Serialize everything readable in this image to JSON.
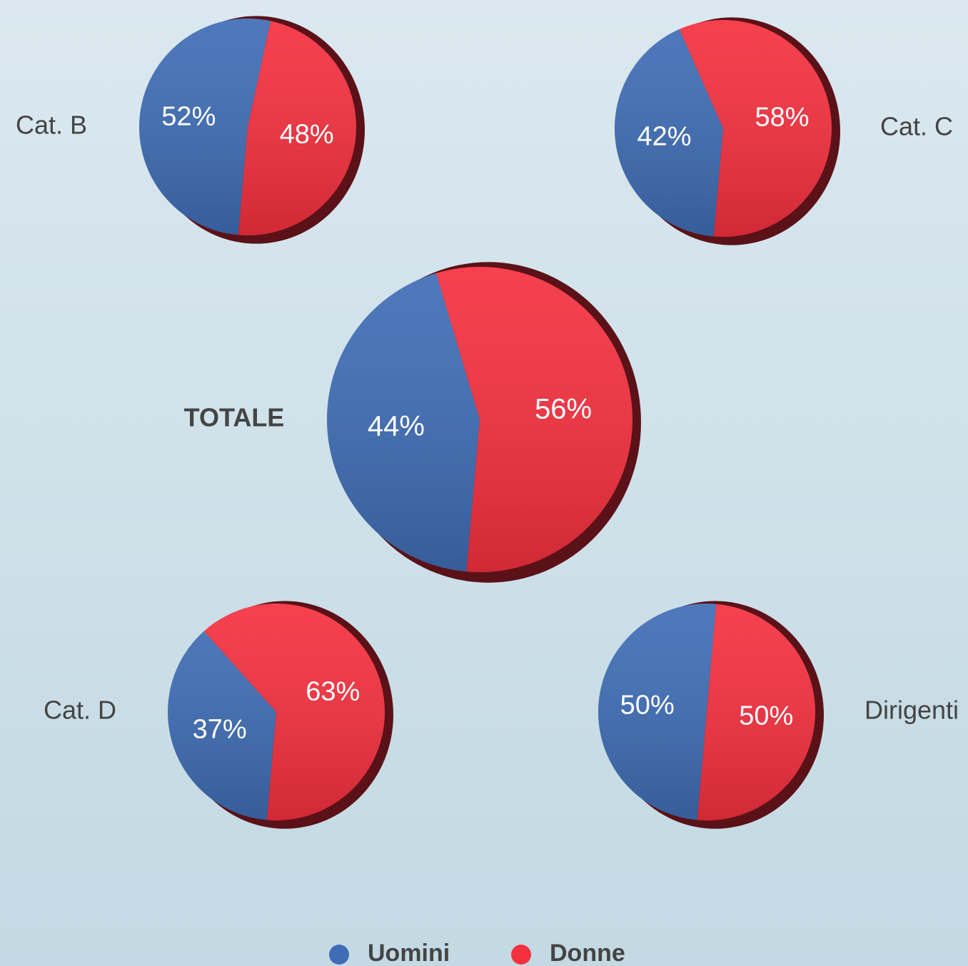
{
  "chart_data": {
    "type": "pie",
    "categories": [
      "Cat. B",
      "Cat. C",
      "TOTALE",
      "Cat. D",
      "Dirigenti"
    ],
    "series": [
      {
        "name": "Uomini",
        "color": "#3f6db5",
        "values": [
          52,
          42,
          44,
          37,
          50
        ],
        "value_labels": [
          "52%",
          "42%",
          "44%",
          "37%",
          "50%"
        ]
      },
      {
        "name": "Donne",
        "color": "#f5303f",
        "values": [
          48,
          58,
          56,
          63,
          50
        ],
        "value_labels": [
          "48%",
          "58%",
          "56%",
          "63%",
          "50%"
        ]
      }
    ],
    "legend": "bottom"
  }
}
